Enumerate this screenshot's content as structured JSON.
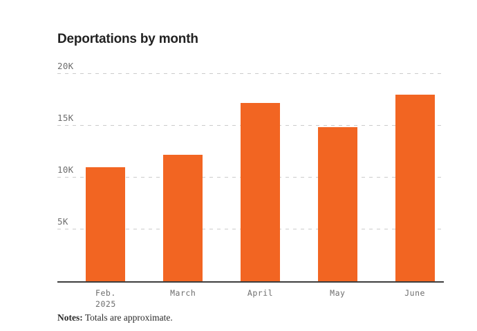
{
  "chart_data": {
    "type": "bar",
    "title": "Deportations by month",
    "categories": [
      "Feb. 2025",
      "March",
      "April",
      "May",
      "June"
    ],
    "category_lines": [
      [
        "Feb.",
        "2025"
      ],
      [
        "March"
      ],
      [
        "April"
      ],
      [
        "May"
      ],
      [
        "June"
      ]
    ],
    "values": [
      11000,
      12200,
      17200,
      14900,
      18000
    ],
    "xlabel": "",
    "ylabel": "",
    "ylim": [
      0,
      20000
    ],
    "y_ticks": [
      {
        "label": "5K",
        "value": 5000
      },
      {
        "label": "10K",
        "value": 10000
      },
      {
        "label": "15K",
        "value": 15000
      },
      {
        "label": "20K",
        "value": 20000
      }
    ],
    "grid": "horizontal-dashed",
    "legend": "none",
    "bar_color": "#f26522",
    "gridline_color": "#cbcbcb",
    "axis_line_color": "#3d3d3d",
    "tick_label_color": "#6d6d6d",
    "title_color": "#222222"
  },
  "notes": {
    "label": "Notes:",
    "text": " Totals are approximate."
  }
}
